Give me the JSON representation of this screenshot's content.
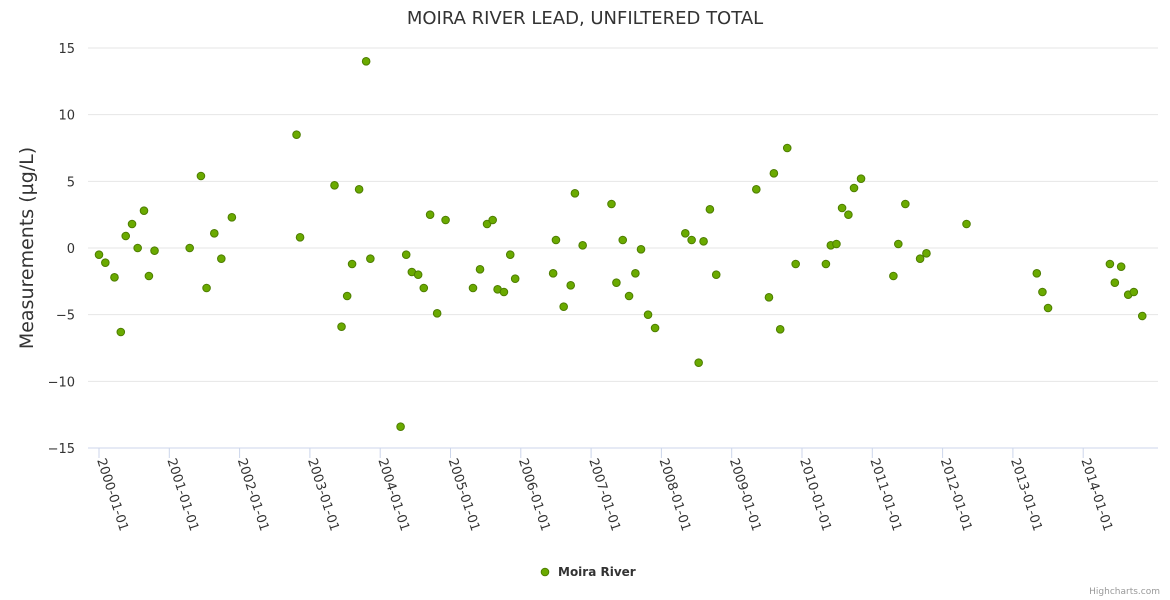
{
  "chart_data": {
    "type": "scatter",
    "title": "MOIRA RIVER LEAD, UNFILTERED TOTAL",
    "xlabel": "",
    "ylabel": "Measurements (µg/L)",
    "ylim": [
      -15,
      15
    ],
    "yticks": [
      15,
      10,
      5,
      0,
      -5,
      -10,
      -15
    ],
    "xlim": [
      2000,
      2014.8
    ],
    "xticks": [
      {
        "value": 2000,
        "label": "2000-01-01"
      },
      {
        "value": 2001,
        "label": "2001-01-01"
      },
      {
        "value": 2002,
        "label": "2002-01-01"
      },
      {
        "value": 2003,
        "label": "2003-01-01"
      },
      {
        "value": 2004,
        "label": "2004-01-01"
      },
      {
        "value": 2005,
        "label": "2005-01-01"
      },
      {
        "value": 2006,
        "label": "2006-01-01"
      },
      {
        "value": 2007,
        "label": "2007-01-01"
      },
      {
        "value": 2008,
        "label": "2008-01-01"
      },
      {
        "value": 2009,
        "label": "2009-01-01"
      },
      {
        "value": 2010,
        "label": "2010-01-01"
      },
      {
        "value": 2011,
        "label": "2011-01-01"
      },
      {
        "value": 2012,
        "label": "2012-01-01"
      },
      {
        "value": 2013,
        "label": "2013-01-01"
      },
      {
        "value": 2014,
        "label": "2014-01-01"
      }
    ],
    "legend": "bottom-center",
    "series": [
      {
        "name": "Moira River",
        "color": "#6aaa00",
        "edge_color": "#4d7d00",
        "points": [
          [
            2000.0,
            -0.5
          ],
          [
            2000.09,
            -1.1
          ],
          [
            2000.22,
            -2.2
          ],
          [
            2000.31,
            -6.3
          ],
          [
            2000.38,
            0.9
          ],
          [
            2000.47,
            1.8
          ],
          [
            2000.55,
            0.0
          ],
          [
            2000.64,
            2.8
          ],
          [
            2000.71,
            -2.1
          ],
          [
            2000.79,
            -0.2
          ],
          [
            2001.29,
            0.0
          ],
          [
            2001.45,
            5.4
          ],
          [
            2001.53,
            -3.0
          ],
          [
            2001.64,
            1.1
          ],
          [
            2001.74,
            -0.8
          ],
          [
            2001.89,
            2.3
          ],
          [
            2002.81,
            8.5
          ],
          [
            2002.86,
            0.8
          ],
          [
            2003.35,
            4.7
          ],
          [
            2003.45,
            -5.9
          ],
          [
            2003.53,
            -3.6
          ],
          [
            2003.6,
            -1.2
          ],
          [
            2003.7,
            4.4
          ],
          [
            2003.8,
            14.0
          ],
          [
            2003.86,
            -0.8
          ],
          [
            2004.29,
            -13.4
          ],
          [
            2004.37,
            -0.5
          ],
          [
            2004.45,
            -1.8
          ],
          [
            2004.54,
            -2.0
          ],
          [
            2004.62,
            -3.0
          ],
          [
            2004.71,
            2.5
          ],
          [
            2004.81,
            -4.9
          ],
          [
            2004.93,
            2.1
          ],
          [
            2005.32,
            -3.0
          ],
          [
            2005.42,
            -1.6
          ],
          [
            2005.52,
            1.8
          ],
          [
            2005.6,
            2.1
          ],
          [
            2005.67,
            -3.1
          ],
          [
            2005.76,
            -3.3
          ],
          [
            2005.85,
            -0.5
          ],
          [
            2005.92,
            -2.3
          ],
          [
            2006.46,
            -1.9
          ],
          [
            2006.5,
            0.6
          ],
          [
            2006.61,
            -4.4
          ],
          [
            2006.71,
            -2.8
          ],
          [
            2006.77,
            4.1
          ],
          [
            2006.88,
            0.2
          ],
          [
            2007.29,
            3.3
          ],
          [
            2007.36,
            -2.6
          ],
          [
            2007.45,
            0.6
          ],
          [
            2007.54,
            -3.6
          ],
          [
            2007.63,
            -1.9
          ],
          [
            2007.71,
            -0.1
          ],
          [
            2007.81,
            -5.0
          ],
          [
            2007.91,
            -6.0
          ],
          [
            2008.34,
            1.1
          ],
          [
            2008.43,
            0.6
          ],
          [
            2008.53,
            -8.6
          ],
          [
            2008.6,
            0.5
          ],
          [
            2008.69,
            2.9
          ],
          [
            2008.78,
            -2.0
          ],
          [
            2009.35,
            4.4
          ],
          [
            2009.53,
            -3.7
          ],
          [
            2009.6,
            5.6
          ],
          [
            2009.69,
            -6.1
          ],
          [
            2009.79,
            7.5
          ],
          [
            2009.91,
            -1.2
          ],
          [
            2010.34,
            -1.2
          ],
          [
            2010.41,
            0.2
          ],
          [
            2010.49,
            0.3
          ],
          [
            2010.57,
            3.0
          ],
          [
            2010.66,
            2.5
          ],
          [
            2010.74,
            4.5
          ],
          [
            2010.84,
            5.2
          ],
          [
            2011.3,
            -2.1
          ],
          [
            2011.37,
            0.3
          ],
          [
            2011.47,
            3.3
          ],
          [
            2011.68,
            -0.8
          ],
          [
            2011.77,
            -0.4
          ],
          [
            2012.34,
            1.8
          ],
          [
            2013.34,
            -1.9
          ],
          [
            2013.42,
            -3.3
          ],
          [
            2013.5,
            -4.5
          ],
          [
            2014.38,
            -1.2
          ],
          [
            2014.45,
            -2.6
          ],
          [
            2014.54,
            -1.4
          ],
          [
            2014.64,
            -3.5
          ],
          [
            2014.72,
            -3.3
          ],
          [
            2014.84,
            -5.1
          ]
        ]
      }
    ]
  },
  "credits": "Highcharts.com"
}
